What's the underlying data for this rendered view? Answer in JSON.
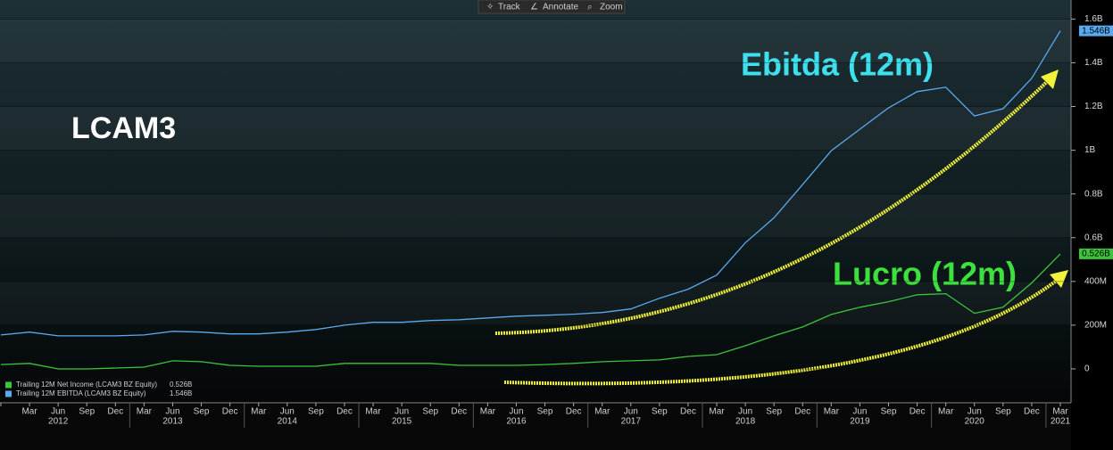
{
  "chart_data": {
    "type": "line",
    "title": "LCAM3",
    "annotations": [
      "Ebitda (12m)",
      "Lucro (12m)"
    ],
    "toolbar": [
      "Track",
      "Annotate",
      "Zoom"
    ],
    "categories": [
      null,
      "Mar",
      "Jun",
      "Sep",
      "Dec",
      "Mar",
      "Jun",
      "Sep",
      "Dec",
      "Mar",
      "Jun",
      "Sep",
      "Dec",
      "Mar",
      "Jun",
      "Sep",
      "Dec",
      "Mar",
      "Jun",
      "Sep",
      "Dec",
      "Mar",
      "Jun",
      "Sep",
      "Dec",
      "Mar",
      "Jun",
      "Sep",
      "Dec",
      "Mar",
      "Jun",
      "Sep",
      "Dec",
      "Mar",
      "Jun",
      "Sep",
      "Dec",
      "Mar"
    ],
    "years": [
      "2012",
      "2013",
      "2014",
      "2015",
      "2016",
      "2017",
      "2018",
      "2019",
      "2020",
      "2021"
    ],
    "series": [
      {
        "name": "Trailing 12M Net Income (LCAM3 BZ Equity)",
        "color": "#3cc43c",
        "values": [
          20,
          25,
          0,
          0,
          4,
          8,
          37,
          33,
          16,
          12,
          12,
          12,
          25,
          25,
          25,
          25,
          16,
          16,
          16,
          20,
          25,
          33,
          37,
          41,
          57,
          65,
          106,
          151,
          192,
          249,
          282,
          307,
          339,
          344,
          254,
          282,
          393,
          526
        ],
        "value_labels": [
          null,
          null,
          null,
          null,
          null,
          null,
          null,
          null,
          null,
          null,
          null,
          null,
          null,
          null,
          null,
          null,
          null,
          null,
          null,
          null,
          null,
          null,
          null,
          null,
          null,
          null,
          null,
          null,
          null,
          null,
          null,
          null,
          null,
          null,
          null,
          null,
          null,
          "0.526B"
        ]
      },
      {
        "name": "Trailing 12M EBITDA (LCAM3 BZ Equity)",
        "color": "#5aaaf0",
        "values": [
          155,
          168,
          151,
          151,
          151,
          155,
          172,
          168,
          160,
          160,
          168,
          180,
          200,
          213,
          213,
          221,
          225,
          233,
          241,
          245,
          250,
          258,
          274,
          323,
          364,
          429,
          577,
          691,
          843,
          998,
          1096,
          1194,
          1268,
          1288,
          1157,
          1190,
          1329,
          1546
        ],
        "value_labels": [
          null,
          null,
          null,
          null,
          null,
          null,
          null,
          null,
          null,
          null,
          null,
          null,
          null,
          null,
          null,
          null,
          null,
          null,
          null,
          null,
          null,
          null,
          null,
          null,
          null,
          null,
          null,
          null,
          null,
          null,
          null,
          null,
          null,
          null,
          null,
          null,
          null,
          "1.546B"
        ]
      }
    ],
    "ylim": [
      -155,
      1630
    ],
    "yticks": [
      {
        "value": 0,
        "label": "0"
      },
      {
        "value": 200,
        "label": "200M"
      },
      {
        "value": 400,
        "label": "400M"
      },
      {
        "value": 600,
        "label": "0.6B"
      },
      {
        "value": 800,
        "label": "0.8B"
      },
      {
        "value": 1000,
        "label": "1B"
      },
      {
        "value": 1200,
        "label": "1.2B"
      },
      {
        "value": 1400,
        "label": "1.4B"
      },
      {
        "value": 1600,
        "label": "1.6B"
      }
    ],
    "grid": true
  }
}
